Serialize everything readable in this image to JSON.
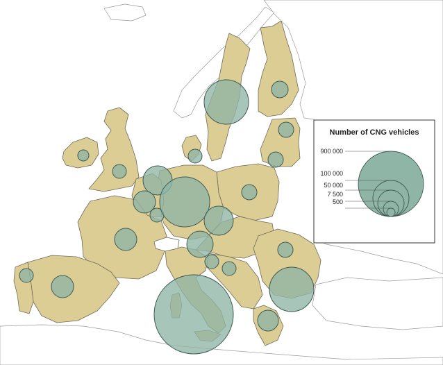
{
  "legend": {
    "title": "Number of CNG vehicles",
    "scale": [
      {
        "label": "900 000",
        "value": 900000
      },
      {
        "label": "100 000",
        "value": 100000
      },
      {
        "label": "50 000",
        "value": 50000
      },
      {
        "label": "7 500",
        "value": 7500
      },
      {
        "label": "500",
        "value": 500
      }
    ]
  },
  "colors": {
    "eu_land": "#dbcd94",
    "other_land": "#ffffff",
    "bubble": "#8fb5a6",
    "bubble_stroke": "#3e5a52"
  }
}
